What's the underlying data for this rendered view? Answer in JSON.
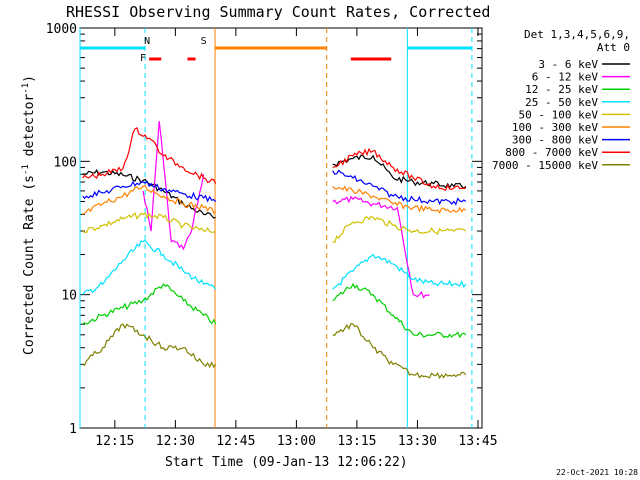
{
  "chart_data": {
    "type": "line",
    "title": "RHESSI Observing Summary Count Rates, Corrected",
    "xlabel": "Start Time (09-Jan-13 12:06:22)",
    "ylabel_main": "Corrected Count Rate (s",
    "ylabel_sup1": "-1",
    "ylabel_mid": " detector",
    "ylabel_sup2": "-1",
    "ylabel_end": ")",
    "yscale": "log",
    "ylim": [
      1,
      1000
    ],
    "xlim": [
      "12:06:22",
      "13:46:00"
    ],
    "x_ticks": [
      "12:15",
      "12:30",
      "12:45",
      "13:00",
      "13:15",
      "13:30",
      "13:45"
    ],
    "y_ticks": [
      "1",
      "10",
      "100",
      "1000"
    ],
    "date_stamp": "22-Oct-2021 10:28",
    "legend": {
      "header1": "Det 1,3,4,5,6,9,",
      "header2": "Att 0",
      "placement": "right"
    },
    "series": [
      {
        "name": "3 - 6 keV",
        "color": "#000000",
        "x": [
          "12:07",
          "12:12",
          "12:17",
          "12:22",
          "12:27",
          "12:32",
          "12:37",
          "12:40",
          "13:09",
          "13:14",
          "13:19",
          "13:24",
          "13:29",
          "13:34",
          "13:39",
          "13:42"
        ],
        "values": [
          80,
          83,
          79,
          72,
          60,
          48,
          40,
          38,
          95,
          105,
          110,
          75,
          70,
          68,
          65,
          65
        ]
      },
      {
        "name": "6 - 12 keV",
        "color": "#ff00ff",
        "x": [
          "12:22",
          "12:24",
          "12:26",
          "12:29",
          "12:32",
          "12:34",
          "12:37",
          "13:09",
          "13:14",
          "13:19",
          "13:25",
          "13:29",
          "13:33"
        ],
        "values": [
          60,
          30,
          200,
          25,
          22,
          30,
          80,
          50,
          52,
          48,
          45,
          10,
          10
        ]
      },
      {
        "name": "12 - 25 keV",
        "color": "#00d000",
        "x": [
          "12:07",
          "12:12",
          "12:17",
          "12:22",
          "12:27",
          "12:32",
          "12:37",
          "12:40",
          "13:09",
          "13:14",
          "13:19",
          "13:24",
          "13:29",
          "13:34",
          "13:39",
          "13:42"
        ],
        "values": [
          6,
          7,
          8,
          9,
          12,
          9,
          7,
          6,
          9,
          12,
          10,
          7,
          5,
          5,
          5,
          5
        ]
      },
      {
        "name": "25 - 50 keV",
        "color": "#00e0ff",
        "x": [
          "12:07",
          "12:12",
          "12:17",
          "12:22",
          "12:27",
          "12:32",
          "12:37",
          "12:40",
          "13:09",
          "13:14",
          "13:19",
          "13:24",
          "13:29",
          "13:34",
          "13:39",
          "13:42"
        ],
        "values": [
          10,
          12,
          18,
          25,
          20,
          15,
          12,
          11,
          11,
          15,
          20,
          17,
          13,
          12,
          12,
          12
        ]
      },
      {
        "name": "50 - 100 keV",
        "color": "#d0c000",
        "x": [
          "12:07",
          "12:12",
          "12:17",
          "12:22",
          "12:27",
          "12:32",
          "12:37",
          "12:40",
          "13:09",
          "13:14",
          "13:19",
          "13:24",
          "13:29",
          "13:34",
          "13:39",
          "13:42"
        ],
        "values": [
          30,
          33,
          37,
          40,
          38,
          33,
          30,
          30,
          25,
          35,
          38,
          33,
          30,
          30,
          30,
          30
        ]
      },
      {
        "name": "100 - 300 keV",
        "color": "#ff8000",
        "x": [
          "12:07",
          "12:12",
          "12:17",
          "12:22",
          "12:27",
          "12:32",
          "12:37",
          "12:40",
          "13:09",
          "13:14",
          "13:19",
          "13:24",
          "13:29",
          "13:34",
          "13:39",
          "13:42"
        ],
        "values": [
          40,
          48,
          55,
          65,
          55,
          48,
          45,
          42,
          65,
          60,
          55,
          48,
          45,
          43,
          43,
          43
        ]
      },
      {
        "name": "300 - 800 keV",
        "color": "#0000ff",
        "x": [
          "12:07",
          "12:12",
          "12:17",
          "12:22",
          "12:27",
          "12:32",
          "12:37",
          "12:40",
          "13:09",
          "13:14",
          "13:19",
          "13:24",
          "13:29",
          "13:34",
          "13:39",
          "13:42"
        ],
        "values": [
          55,
          58,
          65,
          70,
          62,
          57,
          53,
          50,
          85,
          75,
          65,
          55,
          52,
          50,
          50,
          50
        ]
      },
      {
        "name": "800 - 7000 keV",
        "color": "#ff0000",
        "x": [
          "12:07",
          "12:12",
          "12:17",
          "12:20",
          "12:24",
          "12:27",
          "12:32",
          "12:37",
          "12:40",
          "13:09",
          "13:14",
          "13:19",
          "13:24",
          "13:29",
          "13:34",
          "13:39",
          "13:42"
        ],
        "values": [
          75,
          80,
          88,
          175,
          145,
          110,
          90,
          75,
          68,
          90,
          110,
          120,
          90,
          75,
          65,
          63,
          63
        ]
      },
      {
        "name": "7000 - 15000 keV",
        "color": "#808000",
        "x": [
          "12:07",
          "12:12",
          "12:17",
          "12:22",
          "12:27",
          "12:32",
          "12:37",
          "12:40",
          "13:09",
          "13:14",
          "13:19",
          "13:24",
          "13:29",
          "13:34",
          "13:39",
          "13:42"
        ],
        "values": [
          3,
          4,
          6,
          5,
          4,
          4,
          3,
          3,
          5,
          6,
          4,
          3,
          2.5,
          2.5,
          2.5,
          2.5
        ]
      }
    ],
    "vertical_markers": [
      {
        "x": "12:06:22",
        "color": "#00e0ff",
        "style": "solid"
      },
      {
        "x": "12:22:30",
        "color": "#00e0ff",
        "style": "dashed"
      },
      {
        "x": "12:39:50",
        "color": "#ff8000",
        "style": "solid"
      },
      {
        "x": "13:07:30",
        "color": "#ff8000",
        "style": "dashed"
      },
      {
        "x": "13:27:30",
        "color": "#00e0ff",
        "style": "solid"
      },
      {
        "x": "13:43:30",
        "color": "#00e0ff",
        "style": "dashed"
      }
    ],
    "flag_bars": [
      {
        "label": "",
        "color": "#00e0ff",
        "x": [
          "12:06:22",
          "12:22:30"
        ],
        "row": "top"
      },
      {
        "label": "N",
        "color": "#00e0ff",
        "x": [
          "12:23:00",
          "12:23:00"
        ],
        "row": "label"
      },
      {
        "label": "S",
        "color": "#ff8000",
        "x": [
          "12:37:00",
          "12:37:00"
        ],
        "row": "label"
      },
      {
        "label": "",
        "color": "#ff8000",
        "x": [
          "12:39:50",
          "13:07:30"
        ],
        "row": "top"
      },
      {
        "label": "F",
        "color": "#ff0000",
        "x": [
          "12:22:00",
          "12:22:00"
        ],
        "row": "label2"
      },
      {
        "label": "",
        "color": "#ff0000",
        "x": [
          "12:23:30",
          "12:26:30"
        ],
        "row": "mid"
      },
      {
        "label": "",
        "color": "#ff0000",
        "x": [
          "12:33:00",
          "12:35:00"
        ],
        "row": "mid"
      },
      {
        "label": "",
        "color": "#ff0000",
        "x": [
          "13:13:30",
          "13:23:30"
        ],
        "row": "mid"
      },
      {
        "label": "",
        "color": "#00e0ff",
        "x": [
          "13:27:30",
          "13:43:30"
        ],
        "row": "top"
      }
    ]
  }
}
